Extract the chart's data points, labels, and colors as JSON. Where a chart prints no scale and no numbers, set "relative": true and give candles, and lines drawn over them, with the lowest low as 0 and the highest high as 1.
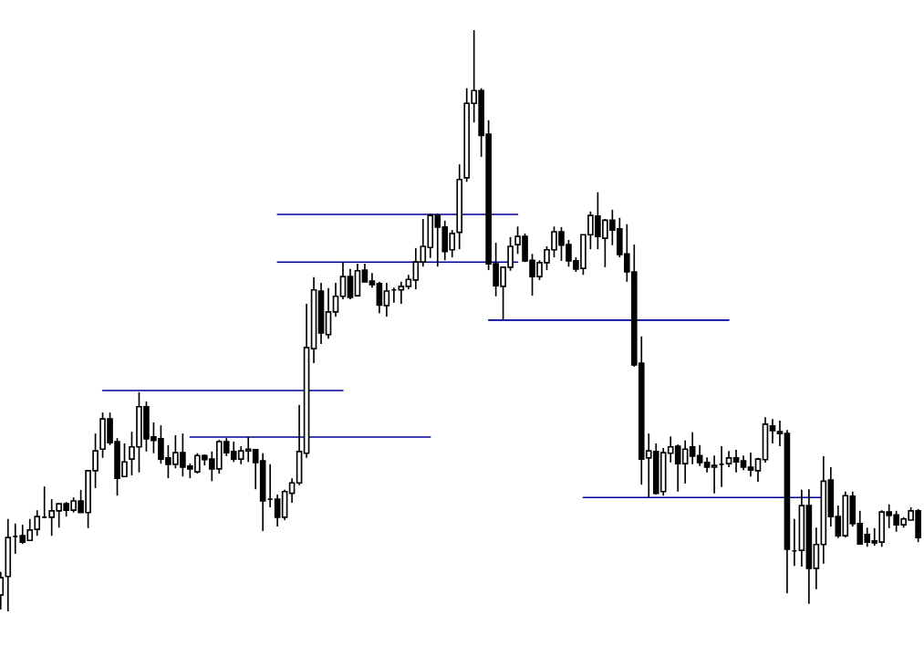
{
  "chart_data": {
    "type": "candlestick",
    "relative": true,
    "categories": [
      null,
      null,
      null,
      null,
      null,
      null,
      null,
      null,
      null,
      null,
      null,
      null,
      null,
      null,
      null,
      null,
      null,
      null,
      null,
      null,
      null,
      null,
      null,
      null,
      null,
      null,
      null,
      null,
      null,
      null,
      null,
      null,
      null,
      null,
      null,
      null,
      null,
      null,
      null,
      null,
      null,
      null,
      null,
      null,
      null,
      null,
      null,
      null,
      null,
      null,
      null,
      null,
      null,
      null,
      null,
      null,
      null,
      null,
      null,
      null,
      null,
      null,
      null,
      null,
      null,
      null,
      null,
      null,
      null,
      null,
      null,
      null,
      null,
      null,
      null,
      null,
      null,
      null,
      null,
      null,
      null,
      null,
      null,
      null,
      null,
      null,
      null,
      null,
      null,
      null,
      null,
      null,
      null,
      null,
      null,
      null,
      null,
      null,
      null,
      null,
      null,
      null,
      null,
      null,
      null,
      null,
      null,
      null,
      null,
      null,
      null,
      null,
      null,
      null,
      null,
      null,
      null,
      null,
      null,
      null,
      null,
      null,
      null,
      null,
      null,
      null,
      null
    ],
    "ohlc": [
      [
        0.028,
        0.068,
        0.003,
        0.058
      ],
      [
        0.06,
        0.159,
        0.0,
        0.127
      ],
      [
        0.129,
        0.151,
        0.099,
        0.129
      ],
      [
        0.13,
        0.149,
        0.116,
        0.119
      ],
      [
        0.122,
        0.159,
        0.121,
        0.14
      ],
      [
        0.141,
        0.174,
        0.13,
        0.163
      ],
      [
        0.162,
        0.215,
        0.16,
        0.162
      ],
      [
        0.162,
        0.193,
        0.13,
        0.173
      ],
      [
        0.173,
        0.185,
        0.144,
        0.185
      ],
      [
        0.185,
        0.188,
        0.163,
        0.174
      ],
      [
        0.174,
        0.196,
        0.17,
        0.19
      ],
      [
        0.19,
        0.209,
        0.17,
        0.17
      ],
      [
        0.17,
        0.242,
        0.143,
        0.242
      ],
      [
        0.242,
        0.306,
        0.212,
        0.276
      ],
      [
        0.279,
        0.342,
        0.264,
        0.331
      ],
      [
        0.331,
        0.342,
        0.286,
        0.29
      ],
      [
        0.292,
        0.298,
        0.199,
        0.229
      ],
      [
        0.232,
        0.289,
        0.232,
        0.257
      ],
      [
        0.262,
        0.309,
        0.234,
        0.283
      ],
      [
        0.283,
        0.377,
        0.239,
        0.352
      ],
      [
        0.352,
        0.361,
        0.275,
        0.297
      ],
      [
        0.3,
        0.325,
        0.272,
        0.294
      ],
      [
        0.297,
        0.32,
        0.254,
        0.262
      ],
      [
        0.264,
        0.286,
        0.229,
        0.253
      ],
      [
        0.253,
        0.303,
        0.246,
        0.273
      ],
      [
        0.273,
        0.306,
        0.232,
        0.248
      ],
      [
        0.25,
        0.254,
        0.229,
        0.245
      ],
      [
        0.24,
        0.272,
        0.237,
        0.268
      ],
      [
        0.268,
        0.27,
        0.251,
        0.261
      ],
      [
        0.262,
        0.275,
        0.224,
        0.245
      ],
      [
        0.245,
        0.295,
        0.237,
        0.292
      ],
      [
        0.292,
        0.298,
        0.267,
        0.273
      ],
      [
        0.275,
        0.292,
        0.257,
        0.262
      ],
      [
        0.262,
        0.284,
        0.253,
        0.276
      ],
      [
        0.276,
        0.3,
        0.257,
        0.279
      ],
      [
        0.278,
        0.279,
        0.21,
        0.256
      ],
      [
        0.259,
        0.272,
        0.138,
        0.19
      ],
      [
        0.193,
        0.253,
        0.179,
        0.193
      ],
      [
        0.193,
        0.201,
        0.146,
        0.162
      ],
      [
        0.162,
        0.209,
        0.157,
        0.206
      ],
      [
        0.203,
        0.229,
        0.187,
        0.221
      ],
      [
        0.221,
        0.355,
        0.217,
        0.275
      ],
      [
        0.272,
        0.529,
        0.264,
        0.454
      ],
      [
        0.452,
        0.575,
        0.427,
        0.553
      ],
      [
        0.551,
        0.565,
        0.46,
        0.479
      ],
      [
        0.476,
        0.556,
        0.469,
        0.515
      ],
      [
        0.515,
        0.565,
        0.507,
        0.542
      ],
      [
        0.542,
        0.601,
        0.537,
        0.576
      ],
      [
        0.576,
        0.589,
        0.537,
        0.54
      ],
      [
        0.543,
        0.598,
        0.543,
        0.586
      ],
      [
        0.587,
        0.598,
        0.567,
        0.567
      ],
      [
        0.568,
        0.582,
        0.557,
        0.562
      ],
      [
        0.564,
        0.567,
        0.513,
        0.527
      ],
      [
        0.526,
        0.565,
        0.507,
        0.551
      ],
      [
        0.553,
        0.557,
        0.531,
        0.553
      ],
      [
        0.553,
        0.567,
        0.529,
        0.559
      ],
      [
        0.559,
        0.579,
        0.554,
        0.571
      ],
      [
        0.57,
        0.625,
        0.554,
        0.601
      ],
      [
        0.601,
        0.675,
        0.593,
        0.628
      ],
      [
        0.626,
        0.684,
        0.608,
        0.681
      ],
      [
        0.681,
        0.684,
        0.593,
        0.661
      ],
      [
        0.661,
        0.672,
        0.604,
        0.619
      ],
      [
        0.622,
        0.656,
        0.609,
        0.65
      ],
      [
        0.652,
        0.769,
        0.623,
        0.743
      ],
      [
        0.746,
        0.9,
        0.739,
        0.874
      ],
      [
        0.874,
        1.0,
        0.841,
        0.896
      ],
      [
        0.896,
        0.9,
        0.782,
        0.819
      ],
      [
        0.821,
        0.845,
        0.587,
        0.598
      ],
      [
        0.598,
        0.634,
        0.542,
        0.56
      ],
      [
        0.559,
        0.593,
        0.501,
        0.592
      ],
      [
        0.592,
        0.644,
        0.586,
        0.628
      ],
      [
        0.631,
        0.662,
        0.615,
        0.645
      ],
      [
        0.645,
        0.65,
        0.601,
        0.603
      ],
      [
        0.604,
        0.615,
        0.543,
        0.576
      ],
      [
        0.576,
        0.604,
        0.57,
        0.6
      ],
      [
        0.6,
        0.628,
        0.587,
        0.622
      ],
      [
        0.622,
        0.662,
        0.609,
        0.653
      ],
      [
        0.653,
        0.661,
        0.603,
        0.63
      ],
      [
        0.631,
        0.639,
        0.593,
        0.603
      ],
      [
        0.603,
        0.609,
        0.584,
        0.589
      ],
      [
        0.59,
        0.648,
        0.579,
        0.648
      ],
      [
        0.648,
        0.688,
        0.623,
        0.681
      ],
      [
        0.68,
        0.721,
        0.623,
        0.645
      ],
      [
        0.642,
        0.675,
        0.592,
        0.673
      ],
      [
        0.673,
        0.691,
        0.63,
        0.656
      ],
      [
        0.658,
        0.677,
        0.609,
        0.614
      ],
      [
        0.615,
        0.666,
        0.567,
        0.584
      ],
      [
        0.584,
        0.631,
        0.421,
        0.424
      ],
      [
        0.427,
        0.473,
        0.218,
        0.262
      ],
      [
        0.264,
        0.306,
        0.196,
        0.276
      ],
      [
        0.275,
        0.289,
        0.201,
        0.203
      ],
      [
        0.206,
        0.281,
        0.199,
        0.273
      ],
      [
        0.272,
        0.301,
        0.256,
        0.283
      ],
      [
        0.284,
        0.287,
        0.206,
        0.254
      ],
      [
        0.254,
        0.294,
        0.22,
        0.279
      ],
      [
        0.283,
        0.308,
        0.253,
        0.267
      ],
      [
        0.268,
        0.286,
        0.25,
        0.256
      ],
      [
        0.256,
        0.265,
        0.239,
        0.248
      ],
      [
        0.248,
        0.268,
        0.203,
        0.251
      ],
      [
        0.253,
        0.284,
        0.214,
        0.253
      ],
      [
        0.254,
        0.276,
        0.248,
        0.264
      ],
      [
        0.264,
        0.278,
        0.239,
        0.257
      ],
      [
        0.259,
        0.268,
        0.243,
        0.248
      ],
      [
        0.248,
        0.273,
        0.232,
        0.243
      ],
      [
        0.242,
        0.264,
        0.223,
        0.262
      ],
      [
        0.261,
        0.334,
        0.256,
        0.322
      ],
      [
        0.319,
        0.331,
        0.289,
        0.311
      ],
      [
        0.309,
        0.328,
        0.284,
        0.306
      ],
      [
        0.306,
        0.312,
        0.031,
        0.107
      ],
      [
        0.104,
        0.159,
        0.078,
        0.104
      ],
      [
        0.105,
        0.209,
        0.077,
        0.182
      ],
      [
        0.182,
        0.21,
        0.013,
        0.074
      ],
      [
        0.074,
        0.144,
        0.038,
        0.115
      ],
      [
        0.115,
        0.267,
        0.082,
        0.224
      ],
      [
        0.226,
        0.248,
        0.146,
        0.163
      ],
      [
        0.163,
        0.182,
        0.126,
        0.13
      ],
      [
        0.13,
        0.206,
        0.127,
        0.199
      ],
      [
        0.198,
        0.206,
        0.146,
        0.151
      ],
      [
        0.151,
        0.173,
        0.116,
        0.116
      ],
      [
        0.132,
        0.144,
        0.111,
        0.119
      ],
      [
        0.121,
        0.143,
        0.113,
        0.118
      ],
      [
        0.119,
        0.174,
        0.111,
        0.171
      ],
      [
        0.171,
        0.184,
        0.143,
        0.165
      ],
      [
        0.166,
        0.173,
        0.137,
        0.149
      ],
      [
        0.149,
        0.162,
        0.144,
        0.159
      ],
      [
        0.157,
        0.179,
        0.157,
        0.173
      ],
      [
        0.173,
        0.176,
        0.119,
        0.127
      ]
    ],
    "series": [
      {
        "type": "line",
        "color": "#000099",
        "values": [
          null,
          null,
          null,
          null,
          null,
          null,
          null,
          null,
          null,
          null,
          null,
          null,
          null,
          null,
          0.38,
          0.38,
          0.38,
          0.38,
          0.38,
          0.38,
          0.38,
          0.38,
          0.38,
          0.38,
          0.38,
          0.38,
          0.38,
          0.38,
          0.38,
          0.38,
          0.38,
          0.38,
          0.38,
          0.38,
          0.38,
          0.38,
          0.38,
          0.38,
          0.38,
          0.38,
          0.38,
          0.38,
          0.38,
          0.38,
          0.38,
          0.38,
          0.38,
          0.38,
          null,
          null,
          null,
          null,
          null,
          null,
          null,
          null,
          null,
          null,
          null,
          null,
          null,
          null,
          null,
          null,
          null,
          null,
          null,
          null,
          null,
          null,
          null,
          null,
          null,
          null,
          null,
          null,
          null,
          null,
          null,
          null,
          null,
          null,
          null,
          null,
          null,
          null,
          null,
          null,
          null,
          null,
          null,
          null,
          null,
          null,
          null,
          null,
          null,
          null,
          null,
          null,
          null,
          null,
          null,
          null,
          null,
          null,
          null,
          null,
          null,
          null,
          null,
          null,
          null,
          null,
          null,
          null,
          null,
          null,
          null,
          null,
          null,
          null,
          null,
          null,
          null,
          null,
          null
        ]
      },
      {
        "type": "line",
        "color": "#000099",
        "values": [
          null,
          null,
          null,
          null,
          null,
          null,
          null,
          null,
          null,
          null,
          null,
          null,
          null,
          null,
          null,
          null,
          null,
          null,
          null,
          null,
          null,
          null,
          null,
          null,
          null,
          null,
          0.3,
          0.3,
          0.3,
          0.3,
          0.3,
          0.3,
          0.3,
          0.3,
          0.3,
          0.3,
          0.3,
          0.3,
          0.3,
          0.3,
          0.3,
          0.3,
          0.3,
          0.3,
          0.3,
          0.3,
          0.3,
          0.3,
          0.3,
          0.3,
          0.3,
          0.3,
          0.3,
          0.3,
          0.3,
          0.3,
          0.3,
          0.3,
          0.3,
          0.3,
          null,
          null,
          null,
          null,
          null,
          null,
          null,
          null,
          null,
          null,
          null,
          null,
          null,
          null,
          null,
          null,
          null,
          null,
          null,
          null,
          null,
          null,
          null,
          null,
          null,
          null,
          null,
          null,
          null,
          null,
          null,
          null,
          null,
          null,
          null,
          null,
          null,
          null,
          null,
          null,
          null,
          null,
          null,
          null,
          null,
          null,
          null,
          null,
          null,
          null,
          null,
          null,
          null,
          null,
          null,
          null,
          null,
          null,
          null,
          null,
          null,
          null,
          null,
          null,
          null,
          null,
          null
        ]
      },
      {
        "type": "line",
        "color": "#000099",
        "values": [
          null,
          null,
          null,
          null,
          null,
          null,
          null,
          null,
          null,
          null,
          null,
          null,
          null,
          null,
          null,
          null,
          null,
          null,
          null,
          null,
          null,
          null,
          null,
          null,
          null,
          null,
          null,
          null,
          null,
          null,
          null,
          null,
          null,
          null,
          null,
          null,
          null,
          null,
          0.683,
          0.683,
          0.683,
          0.683,
          0.683,
          0.683,
          0.683,
          0.683,
          0.683,
          0.683,
          0.683,
          0.683,
          0.683,
          0.683,
          0.683,
          0.683,
          0.683,
          0.683,
          0.683,
          0.683,
          0.683,
          0.683,
          0.683,
          0.683,
          0.683,
          0.683,
          0.683,
          0.683,
          0.683,
          0.683,
          0.683,
          0.683,
          0.683,
          0.683,
          null,
          null,
          null,
          null,
          null,
          null,
          null,
          null,
          null,
          null,
          null,
          null,
          null,
          null,
          null,
          null,
          null,
          null,
          null,
          null,
          null,
          null,
          null,
          null,
          null,
          null,
          null,
          null,
          null,
          null,
          null,
          null,
          null,
          null,
          null,
          null,
          null,
          null,
          null,
          null,
          null,
          null,
          null,
          null,
          null,
          null,
          null,
          null,
          null,
          null,
          null,
          null,
          null,
          null,
          null
        ]
      },
      {
        "type": "line",
        "color": "#000099",
        "values": [
          null,
          null,
          null,
          null,
          null,
          null,
          null,
          null,
          null,
          null,
          null,
          null,
          null,
          null,
          null,
          null,
          null,
          null,
          null,
          null,
          null,
          null,
          null,
          null,
          null,
          null,
          null,
          null,
          null,
          null,
          null,
          null,
          null,
          null,
          null,
          null,
          null,
          null,
          0.601,
          0.601,
          0.601,
          0.601,
          0.601,
          0.601,
          0.601,
          0.601,
          0.601,
          0.601,
          0.601,
          0.601,
          0.601,
          0.601,
          0.601,
          0.601,
          0.601,
          0.601,
          0.601,
          0.601,
          0.601,
          0.601,
          0.601,
          0.601,
          0.601,
          0.601,
          0.601,
          0.601,
          0.601,
          0.601,
          0.601,
          0.601,
          0.601,
          0.601,
          null,
          null,
          null,
          null,
          null,
          null,
          null,
          null,
          null,
          null,
          null,
          null,
          null,
          null,
          null,
          null,
          null,
          null,
          null,
          null,
          null,
          null,
          null,
          null,
          null,
          null,
          null,
          null,
          null,
          null,
          null,
          null,
          null,
          null,
          null,
          null,
          null,
          null,
          null,
          null,
          null,
          null,
          null,
          null,
          null,
          null,
          null,
          null,
          null,
          null,
          null,
          null,
          null,
          null,
          null
        ]
      },
      {
        "type": "line",
        "color": "#000099",
        "values": [
          null,
          null,
          null,
          null,
          null,
          null,
          null,
          null,
          null,
          null,
          null,
          null,
          null,
          null,
          null,
          null,
          null,
          null,
          null,
          null,
          null,
          null,
          null,
          null,
          null,
          null,
          null,
          null,
          null,
          null,
          null,
          null,
          null,
          null,
          null,
          null,
          null,
          null,
          null,
          null,
          null,
          null,
          null,
          null,
          null,
          null,
          null,
          null,
          null,
          null,
          null,
          null,
          null,
          null,
          null,
          null,
          null,
          null,
          null,
          null,
          null,
          null,
          null,
          null,
          null,
          null,
          null,
          0.501,
          0.501,
          0.501,
          0.501,
          0.501,
          0.501,
          0.501,
          0.501,
          0.501,
          0.501,
          0.501,
          0.501,
          0.501,
          0.501,
          0.501,
          0.501,
          0.501,
          0.501,
          0.501,
          0.501,
          0.501,
          0.501,
          0.501,
          0.501,
          0.501,
          0.501,
          0.501,
          0.501,
          0.501,
          0.501,
          0.501,
          0.501,
          0.501,
          0.501,
          null,
          null,
          null,
          null,
          null,
          null,
          null,
          null,
          null,
          null,
          null,
          null,
          null,
          null,
          null,
          null,
          null,
          null,
          null,
          null,
          null,
          null,
          null,
          null,
          null,
          null
        ]
      },
      {
        "type": "line",
        "color": "#000099",
        "values": [
          null,
          null,
          null,
          null,
          null,
          null,
          null,
          null,
          null,
          null,
          null,
          null,
          null,
          null,
          null,
          null,
          null,
          null,
          null,
          null,
          null,
          null,
          null,
          null,
          null,
          null,
          null,
          null,
          null,
          null,
          null,
          null,
          null,
          null,
          null,
          null,
          null,
          null,
          null,
          null,
          null,
          null,
          null,
          null,
          null,
          null,
          null,
          null,
          null,
          null,
          null,
          null,
          null,
          null,
          null,
          null,
          null,
          null,
          null,
          null,
          null,
          null,
          null,
          null,
          null,
          null,
          null,
          null,
          null,
          null,
          null,
          null,
          null,
          null,
          null,
          null,
          null,
          null,
          null,
          null,
          0.196,
          0.196,
          0.196,
          0.196,
          0.196,
          0.196,
          0.196,
          0.196,
          0.196,
          0.196,
          0.196,
          0.196,
          0.196,
          0.196,
          0.196,
          0.196,
          0.196,
          0.196,
          0.196,
          0.196,
          0.196,
          0.196,
          0.196,
          0.196,
          0.196,
          0.196,
          0.196,
          0.196,
          0.196,
          0.196,
          0.196,
          0.196,
          0.196,
          0.196,
          null,
          null,
          null,
          null,
          null,
          null,
          null,
          null,
          null,
          null,
          null,
          null,
          null
        ]
      }
    ]
  }
}
